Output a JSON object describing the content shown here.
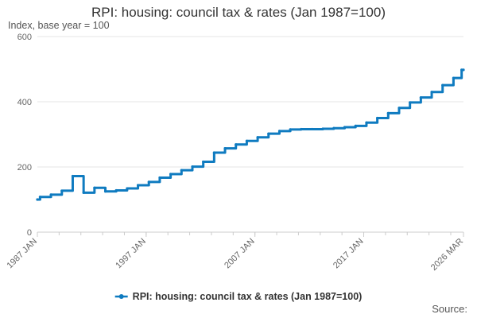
{
  "chart_data": {
    "type": "line",
    "title": "RPI: housing: council tax & rates (Jan 1987=100)",
    "subtitle": "Index, base year = 100",
    "source_label": "Source:",
    "ylim": [
      0,
      600
    ],
    "yticks": [
      0,
      200,
      400,
      600
    ],
    "xlim": [
      1987.0,
      2026.17
    ],
    "xticks": [
      {
        "pos": 1987.0,
        "label": "1987 JAN"
      },
      {
        "pos": 1997.0,
        "label": "1997 JAN"
      },
      {
        "pos": 2007.0,
        "label": "2007 JAN"
      },
      {
        "pos": 2017.0,
        "label": "2017 JAN"
      },
      {
        "pos": 2026.17,
        "label": "2026 MAR"
      }
    ],
    "legend_position": "bottom-center",
    "series": [
      {
        "name": "RPI: housing: council tax & rates (Jan 1987=100)",
        "color": "#0f7bc0",
        "points": [
          [
            1987.0,
            100
          ],
          [
            1987.25,
            108
          ],
          [
            1988.25,
            115
          ],
          [
            1989.25,
            127
          ],
          [
            1990.25,
            172
          ],
          [
            1991.25,
            121
          ],
          [
            1992.25,
            136
          ],
          [
            1993.25,
            125
          ],
          [
            1994.25,
            128
          ],
          [
            1995.25,
            134
          ],
          [
            1996.25,
            144
          ],
          [
            1997.25,
            154
          ],
          [
            1998.25,
            167
          ],
          [
            1999.25,
            178
          ],
          [
            2000.25,
            190
          ],
          [
            2001.25,
            201
          ],
          [
            2002.25,
            216
          ],
          [
            2003.25,
            244
          ],
          [
            2004.25,
            257
          ],
          [
            2005.25,
            269
          ],
          [
            2006.25,
            280
          ],
          [
            2007.25,
            291
          ],
          [
            2008.25,
            302
          ],
          [
            2009.25,
            310
          ],
          [
            2010.25,
            315
          ],
          [
            2011.25,
            316
          ],
          [
            2012.25,
            316
          ],
          [
            2013.25,
            317
          ],
          [
            2014.25,
            319
          ],
          [
            2015.25,
            322
          ],
          [
            2016.25,
            326
          ],
          [
            2017.25,
            336
          ],
          [
            2018.25,
            350
          ],
          [
            2019.25,
            365
          ],
          [
            2020.25,
            381
          ],
          [
            2021.25,
            398
          ],
          [
            2022.25,
            413
          ],
          [
            2023.25,
            430
          ],
          [
            2024.25,
            451
          ],
          [
            2025.25,
            473
          ],
          [
            2026.0,
            498
          ],
          [
            2026.17,
            498
          ]
        ]
      }
    ]
  }
}
